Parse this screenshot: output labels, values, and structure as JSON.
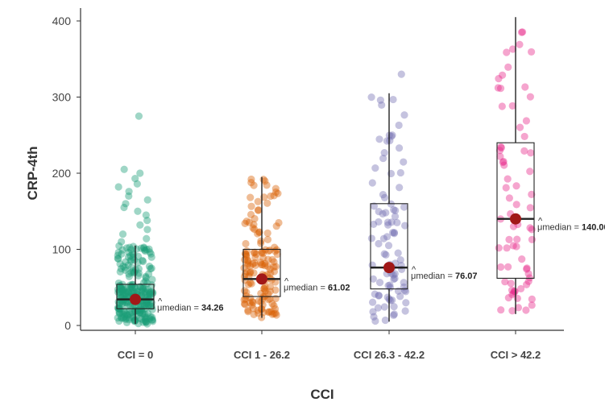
{
  "chart_data": {
    "type": "box-scatter",
    "title": "",
    "xlabel": "CCI",
    "ylabel": "CRP-4th",
    "ylim": [
      0,
      400
    ],
    "yticks": [
      0,
      100,
      200,
      300,
      400
    ],
    "categories": [
      "CCI = 0",
      "CCI 1 - 26.2",
      "CCI 26.3 - 42.2",
      "CCI > 42.2"
    ],
    "colors": [
      "#1b9e77",
      "#d95f02",
      "#7570b3",
      "#e7298a"
    ],
    "annotation_prefix": "μmedian",
    "groups": [
      {
        "label": "CCI = 0",
        "q1": 22,
        "median": 34.26,
        "q3": 54,
        "whisker_low": 2,
        "whisker_high": 105,
        "annotation_value": "34.26",
        "n_points": 260,
        "outliers": [
          275,
          205,
          200,
          193,
          186,
          182,
          176,
          170,
          165,
          160,
          155,
          150,
          145,
          138,
          132,
          126,
          120,
          114,
          110
        ]
      },
      {
        "label": "CCI 1 - 26.2",
        "q1": 38,
        "median": 61.02,
        "q3": 100,
        "whisker_low": 10,
        "whisker_high": 195,
        "annotation_value": "61.02",
        "n_points": 150,
        "outliers": []
      },
      {
        "label": "CCI 26.3 - 42.2",
        "q1": 48,
        "median": 76.07,
        "q3": 160,
        "whisker_low": 5,
        "whisker_high": 305,
        "annotation_value": "76.07",
        "n_points": 95,
        "outliers": [
          330
        ]
      },
      {
        "label": "CCI > 42.2",
        "q1": 62,
        "median": 140.0,
        "q3": 240,
        "whisker_low": 15,
        "whisker_high": 405,
        "annotation_value": "140.00",
        "n_points": 75,
        "outliers": []
      }
    ]
  }
}
